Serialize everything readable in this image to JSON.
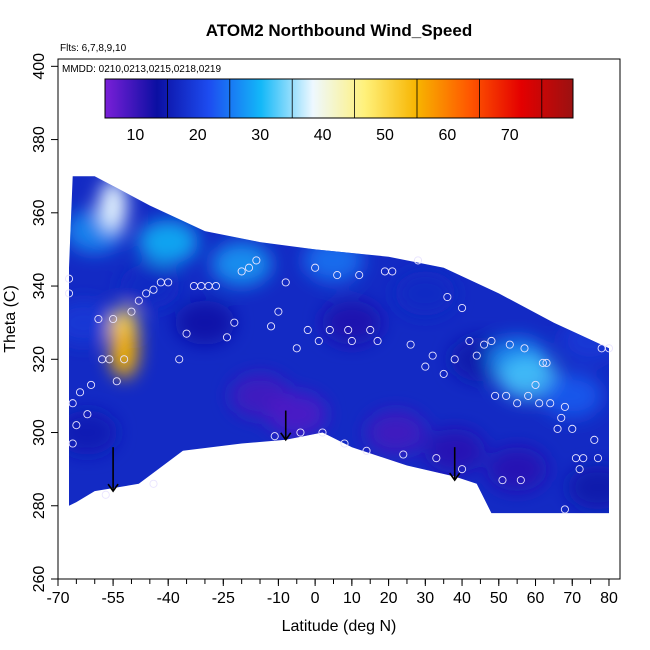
{
  "chart_data": {
    "type": "heatmap",
    "title": "ATOM2 Northbound Wind_Speed",
    "annotations": [
      "Flts: 6,7,8,9,10",
      "MMDD: 0210,0213,0215,0218,0219"
    ],
    "xlabel": "Latitude (deg N)",
    "ylabel": "Theta (C)",
    "xlim": [
      -70,
      83
    ],
    "ylim": [
      260,
      402
    ],
    "xticks": [
      -70,
      -55,
      -40,
      -25,
      -10,
      0,
      10,
      20,
      30,
      40,
      50,
      60,
      70,
      80
    ],
    "xtick_labels": [
      "-70",
      "-55",
      "-40",
      "-25",
      "-10",
      "0",
      "10",
      "20",
      "30",
      "40",
      "50",
      "60",
      "70",
      "80"
    ],
    "xminor_step": 5,
    "yticks": [
      260,
      280,
      300,
      320,
      340,
      360,
      380,
      400
    ],
    "ytick_labels": [
      "260",
      "280",
      "300",
      "320",
      "340",
      "360",
      "380",
      "400"
    ],
    "colorbar": {
      "range": [
        0,
        75
      ],
      "ticks": [
        10,
        20,
        30,
        40,
        50,
        60,
        70
      ],
      "tick_labels": [
        "10",
        "20",
        "30",
        "40",
        "50",
        "60",
        "70"
      ],
      "colors": [
        "#7a1fd8",
        "#0b0fa2",
        "#1d4cf0",
        "#13b8f8",
        "#eef8ff",
        "#fff17a",
        "#f7b400",
        "#ff5800",
        "#e40000",
        "#9b1111"
      ]
    },
    "field_outline": [
      [
        -67,
        280
      ],
      [
        -67,
        345
      ],
      [
        -66,
        370
      ],
      [
        -60,
        370
      ],
      [
        -45,
        362
      ],
      [
        -30,
        355
      ],
      [
        -15,
        352
      ],
      [
        0,
        350
      ],
      [
        20,
        348
      ],
      [
        35,
        345
      ],
      [
        50,
        338
      ],
      [
        65,
        330
      ],
      [
        80,
        323
      ],
      [
        80,
        278
      ],
      [
        48,
        278
      ],
      [
        44,
        286
      ],
      [
        38,
        288
      ],
      [
        25,
        291
      ],
      [
        10,
        296
      ],
      [
        2,
        300
      ],
      [
        -8,
        298
      ],
      [
        -20,
        297
      ],
      [
        -36,
        295
      ],
      [
        -48,
        286
      ],
      [
        -60,
        284
      ],
      [
        -65,
        281
      ]
    ],
    "wind_speed_field": [
      {
        "lat": -62,
        "theta": 300,
        "speed": 10
      },
      {
        "lat": -63,
        "theta": 330,
        "speed": 14
      },
      {
        "lat": -60,
        "theta": 355,
        "speed": 22
      },
      {
        "lat": -55,
        "theta": 362,
        "speed": 33
      },
      {
        "lat": -52,
        "theta": 327,
        "speed": 45
      },
      {
        "lat": -52,
        "theta": 322,
        "speed": 50
      },
      {
        "lat": -45,
        "theta": 340,
        "speed": 12
      },
      {
        "lat": -40,
        "theta": 352,
        "speed": 25
      },
      {
        "lat": -30,
        "theta": 330,
        "speed": 8
      },
      {
        "lat": -20,
        "theta": 346,
        "speed": 23
      },
      {
        "lat": -15,
        "theta": 310,
        "speed": 4
      },
      {
        "lat": -5,
        "theta": 305,
        "speed": 3
      },
      {
        "lat": 5,
        "theta": 347,
        "speed": 20
      },
      {
        "lat": 10,
        "theta": 330,
        "speed": 7
      },
      {
        "lat": 22,
        "theta": 300,
        "speed": 4
      },
      {
        "lat": 30,
        "theta": 338,
        "speed": 12
      },
      {
        "lat": 38,
        "theta": 295,
        "speed": 6
      },
      {
        "lat": 45,
        "theta": 320,
        "speed": 9
      },
      {
        "lat": 55,
        "theta": 320,
        "speed": 22
      },
      {
        "lat": 58,
        "theta": 315,
        "speed": 27
      },
      {
        "lat": 55,
        "theta": 290,
        "speed": 6
      },
      {
        "lat": 70,
        "theta": 310,
        "speed": 18
      },
      {
        "lat": 75,
        "theta": 325,
        "speed": 14
      },
      {
        "lat": 77,
        "theta": 285,
        "speed": 9
      }
    ],
    "flight_points": [
      [
        -67,
        342
      ],
      [
        -67,
        338
      ],
      [
        -66,
        297
      ],
      [
        -66,
        308
      ],
      [
        -65,
        302
      ],
      [
        -64,
        311
      ],
      [
        -62,
        305
      ],
      [
        -61,
        313
      ],
      [
        -59,
        331
      ],
      [
        -58,
        320
      ],
      [
        -57,
        283
      ],
      [
        -56,
        320
      ],
      [
        -55,
        331
      ],
      [
        -54,
        314
      ],
      [
        -52,
        320
      ],
      [
        -50,
        333
      ],
      [
        -48,
        336
      ],
      [
        -46,
        338
      ],
      [
        -44,
        339
      ],
      [
        -42,
        341
      ],
      [
        -40,
        341
      ],
      [
        -44,
        286
      ],
      [
        -37,
        320
      ],
      [
        -35,
        327
      ],
      [
        -33,
        340
      ],
      [
        -31,
        340
      ],
      [
        -29,
        340
      ],
      [
        -27,
        340
      ],
      [
        -24,
        326
      ],
      [
        -22,
        330
      ],
      [
        -20,
        344
      ],
      [
        -18,
        345
      ],
      [
        -16,
        347
      ],
      [
        -12,
        329
      ],
      [
        -11,
        299
      ],
      [
        -10,
        333
      ],
      [
        -8,
        341
      ],
      [
        -5,
        323
      ],
      [
        -4,
        300
      ],
      [
        -2,
        328
      ],
      [
        0,
        345
      ],
      [
        1,
        325
      ],
      [
        2,
        300
      ],
      [
        4,
        328
      ],
      [
        6,
        343
      ],
      [
        8,
        297
      ],
      [
        9,
        328
      ],
      [
        10,
        325
      ],
      [
        12,
        343
      ],
      [
        14,
        295
      ],
      [
        15,
        328
      ],
      [
        17,
        325
      ],
      [
        19,
        344
      ],
      [
        21,
        344
      ],
      [
        24,
        294
      ],
      [
        26,
        324
      ],
      [
        28,
        347
      ],
      [
        30,
        318
      ],
      [
        32,
        321
      ],
      [
        33,
        293
      ],
      [
        35,
        316
      ],
      [
        36,
        337
      ],
      [
        38,
        320
      ],
      [
        40,
        334
      ],
      [
        40,
        290
      ],
      [
        42,
        325
      ],
      [
        44,
        321
      ],
      [
        46,
        324
      ],
      [
        48,
        325
      ],
      [
        49,
        310
      ],
      [
        51,
        287
      ],
      [
        52,
        310
      ],
      [
        53,
        324
      ],
      [
        55,
        308
      ],
      [
        56,
        287
      ],
      [
        57,
        323
      ],
      [
        58,
        310
      ],
      [
        60,
        313
      ],
      [
        61,
        308
      ],
      [
        62,
        319
      ],
      [
        63,
        319
      ],
      [
        64,
        308
      ],
      [
        66,
        301
      ],
      [
        67,
        304
      ],
      [
        68,
        307
      ],
      [
        68,
        279
      ],
      [
        70,
        301
      ],
      [
        71,
        293
      ],
      [
        72,
        290
      ],
      [
        73,
        293
      ],
      [
        76,
        298
      ],
      [
        77,
        293
      ],
      [
        78,
        323
      ],
      [
        80,
        323
      ]
    ],
    "arrows": [
      {
        "lat": -55,
        "theta_top": 296,
        "theta_bottom": 284
      },
      {
        "lat": -8,
        "theta_top": 306,
        "theta_bottom": 298
      },
      {
        "lat": 38,
        "theta_top": 296,
        "theta_bottom": 287
      }
    ]
  }
}
